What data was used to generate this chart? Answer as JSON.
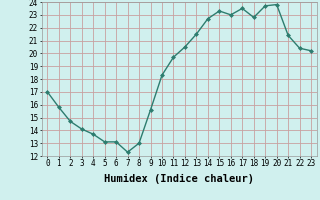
{
  "x": [
    0,
    1,
    2,
    3,
    4,
    5,
    6,
    7,
    8,
    9,
    10,
    11,
    12,
    13,
    14,
    15,
    16,
    17,
    18,
    19,
    20,
    21,
    22,
    23
  ],
  "y": [
    17,
    15.8,
    14.7,
    14.1,
    13.7,
    13.1,
    13.1,
    12.3,
    13.0,
    15.6,
    18.3,
    19.7,
    20.5,
    21.5,
    22.7,
    23.3,
    23.0,
    23.5,
    22.8,
    23.7,
    23.8,
    21.4,
    20.4,
    20.2
  ],
  "line_color": "#2d7d6f",
  "marker": "D",
  "marker_size": 2.0,
  "bg_color": "#d0f0ee",
  "plot_bg_color": "#d0f0ee",
  "grid_color": "#c8a0a0",
  "xlabel": "Humidex (Indice chaleur)",
  "ylim": [
    12,
    24
  ],
  "xlim": [
    -0.5,
    23.5
  ],
  "yticks": [
    12,
    13,
    14,
    15,
    16,
    17,
    18,
    19,
    20,
    21,
    22,
    23,
    24
  ],
  "xticks": [
    0,
    1,
    2,
    3,
    4,
    5,
    6,
    7,
    8,
    9,
    10,
    11,
    12,
    13,
    14,
    15,
    16,
    17,
    18,
    19,
    20,
    21,
    22,
    23
  ],
  "tick_fontsize": 5.5,
  "xlabel_fontsize": 7.5,
  "xlabel_fontweight": "bold",
  "linewidth": 1.0
}
